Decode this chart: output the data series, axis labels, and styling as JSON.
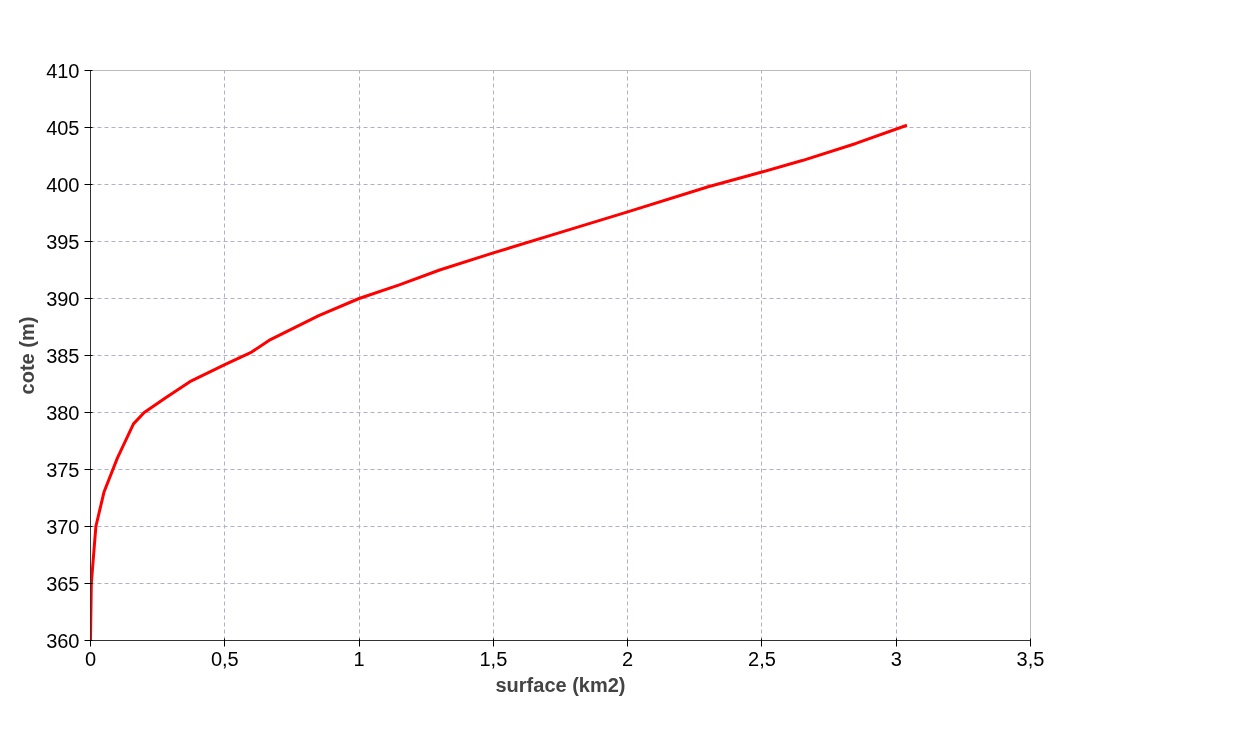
{
  "chart_data": {
    "type": "line",
    "xlabel": "surface (km2)",
    "ylabel": "cote (m)",
    "x": [
      0,
      0.003,
      0.02,
      0.05,
      0.1,
      0.16,
      0.2,
      0.28,
      0.37,
      0.5,
      0.6,
      0.67,
      0.85,
      1,
      1.15,
      1.3,
      1.5,
      1.75,
      2,
      2.3,
      2.5,
      2.65,
      2.85,
      3.04
    ],
    "series": [
      {
        "color": "#ff0000",
        "values": [
          360,
          365,
          370,
          373,
          376,
          379,
          380,
          381.3,
          382.7,
          384.2,
          385.3,
          386.4,
          388.5,
          390,
          391.2,
          392.5,
          394,
          395.8,
          397.6,
          399.8,
          401.1,
          402.1,
          403.6,
          405.2
        ]
      }
    ],
    "xlim": [
      0,
      3.5
    ],
    "ylim": [
      360,
      410
    ],
    "xticks": [
      0,
      {
        "value": 0.5,
        "label": "0,5"
      },
      1,
      {
        "value": 1.5,
        "label": "1,5"
      },
      2,
      {
        "value": 2.5,
        "label": "2,5"
      },
      3,
      {
        "value": 3.5,
        "label": "3,5"
      }
    ],
    "yticks": [
      360,
      365,
      370,
      375,
      380,
      385,
      390,
      395,
      400,
      405,
      410
    ],
    "grid": true,
    "marker": "none",
    "line_style": "solid"
  }
}
